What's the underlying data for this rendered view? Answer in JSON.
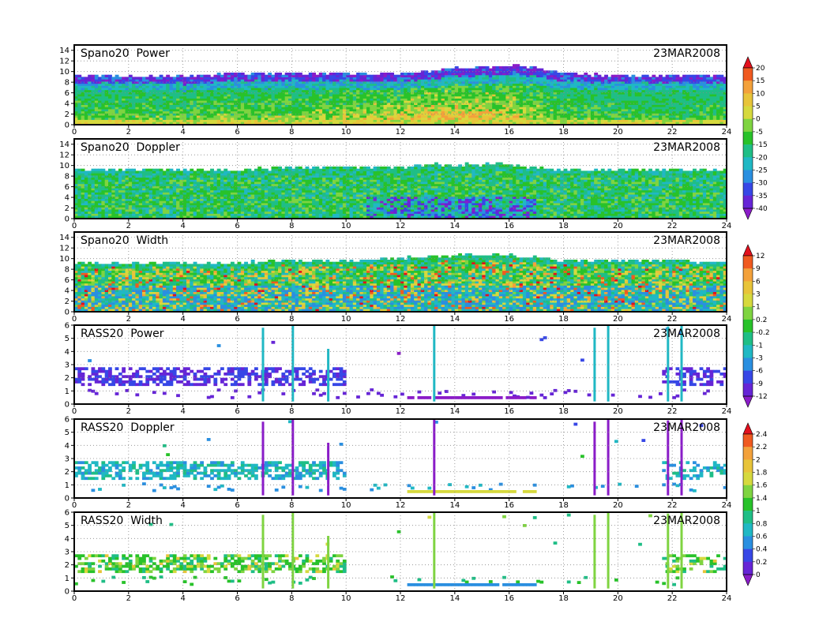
{
  "chart_data": [
    {
      "type": "heatmap",
      "title": "Spano20  Power",
      "date": "23MAR2008",
      "x_ticks": [
        "0",
        "2",
        "4",
        "6",
        "8",
        "10",
        "12",
        "14",
        "16",
        "18",
        "20",
        "22",
        "24"
      ],
      "y_ticks": [
        "0",
        "2",
        "4",
        "6",
        "8",
        "10",
        "12",
        "14"
      ],
      "xlim": [
        0,
        24
      ],
      "ylim": [
        0,
        15
      ],
      "grid": true,
      "colorbar": {
        "labels": [
          "20",
          "15",
          "10",
          "5",
          "0",
          "-5",
          "-15",
          "-20",
          "-25",
          "-30",
          "-35",
          "-40"
        ],
        "colors": [
          "#e3101d",
          "#f05a20",
          "#f3a13b",
          "#e8c43a",
          "#d6d93e",
          "#7fd441",
          "#28c22a",
          "#1fbe86",
          "#20b8c4",
          "#2a8fe0",
          "#3747e6",
          "#6625d6",
          "#8a1cc8"
        ]
      },
      "sample_values": {
        "hours": [
          0,
          2,
          4,
          6,
          8,
          10,
          12,
          13,
          14,
          15,
          16,
          17,
          18,
          20,
          22,
          24
        ],
        "top_height_km": [
          9,
          9,
          9,
          9.5,
          9.5,
          9.5,
          9.5,
          10,
          10.5,
          10.5,
          11,
          10.5,
          9.5,
          9,
          9,
          9
        ],
        "peak_value": [
          6,
          7,
          7,
          8,
          8,
          10,
          12,
          14,
          15,
          14,
          13,
          10,
          7,
          5,
          5,
          5
        ]
      }
    },
    {
      "type": "heatmap",
      "title": "Spano20  Doppler",
      "date": "23MAR2008",
      "x_ticks": [
        "0",
        "2",
        "4",
        "6",
        "8",
        "10",
        "12",
        "14",
        "16",
        "18",
        "20",
        "22",
        "24"
      ],
      "y_ticks": [
        "0",
        "2",
        "4",
        "6",
        "8",
        "10",
        "12",
        "14"
      ],
      "xlim": [
        0,
        24
      ],
      "ylim": [
        0,
        15
      ],
      "grid": true,
      "sample_values": {
        "hours": [
          0,
          2,
          4,
          6,
          8,
          10,
          12,
          13,
          14,
          15,
          16,
          17,
          18,
          20,
          22,
          24
        ],
        "top_height_km": [
          9,
          9,
          9,
          9,
          9.5,
          9.5,
          9.5,
          10,
          10,
          10,
          10,
          9.5,
          9,
          9,
          9,
          9
        ],
        "low_value_min": [
          -10,
          -10,
          -10,
          -12,
          -12,
          -15,
          -30,
          -40,
          -40,
          -40,
          -35,
          -20,
          -15,
          -12,
          -12,
          -12
        ]
      }
    },
    {
      "type": "heatmap",
      "title": "Spano20  Width",
      "date": "23MAR2008",
      "x_ticks": [
        "0",
        "2",
        "4",
        "6",
        "8",
        "10",
        "12",
        "14",
        "16",
        "18",
        "20",
        "22",
        "24"
      ],
      "y_ticks": [
        "0",
        "2",
        "4",
        "6",
        "8",
        "10",
        "12",
        "14"
      ],
      "xlim": [
        0,
        24
      ],
      "ylim": [
        0,
        15
      ],
      "grid": true,
      "colorbar": {
        "labels": [
          "12",
          "9",
          "6",
          "3",
          "1",
          "0.2",
          "-0.2",
          "-1",
          "-3",
          "-6",
          "-9",
          "-12"
        ],
        "colors": [
          "#e3101d",
          "#f05a20",
          "#f3a13b",
          "#e8c43a",
          "#d6d93e",
          "#7fd441",
          "#28c22a",
          "#1fbe86",
          "#20b8c4",
          "#2a8fe0",
          "#3747e6",
          "#6625d6",
          "#8a1cc8"
        ]
      },
      "sample_values": {
        "hours": [
          0,
          2,
          4,
          6,
          8,
          10,
          12,
          13,
          14,
          15,
          16,
          17,
          18,
          20,
          22,
          24
        ],
        "top_height_km": [
          9,
          9,
          9,
          9,
          9.5,
          9.5,
          10,
          10,
          10.5,
          10.5,
          10.5,
          10,
          9.5,
          9.5,
          9.5,
          9
        ]
      }
    },
    {
      "type": "heatmap",
      "title": "RASS20  Power",
      "date": "23MAR2008",
      "x_ticks": [
        "0",
        "2",
        "4",
        "6",
        "8",
        "10",
        "12",
        "14",
        "16",
        "18",
        "20",
        "22",
        "24"
      ],
      "y_ticks": [
        "0",
        "1",
        "2",
        "3",
        "4",
        "5",
        "6"
      ],
      "xlim": [
        0,
        24
      ],
      "ylim": [
        0,
        6
      ],
      "grid": true,
      "sample_values": {
        "vertical_streak_hours": [
          6.9,
          8.0,
          9.3,
          13.2,
          19.1,
          19.6,
          21.8,
          22.3
        ],
        "band_height_km": [
          2,
          2.2,
          1.8
        ]
      }
    },
    {
      "type": "heatmap",
      "title": "RASS20  Doppler",
      "date": "23MAR2008",
      "x_ticks": [
        "0",
        "2",
        "4",
        "6",
        "8",
        "10",
        "12",
        "14",
        "16",
        "18",
        "20",
        "22",
        "24"
      ],
      "y_ticks": [
        "0",
        "1",
        "2",
        "3",
        "4",
        "5",
        "6"
      ],
      "xlim": [
        0,
        24
      ],
      "ylim": [
        0,
        6
      ],
      "grid": true,
      "colorbar": {
        "labels": [
          "2.4",
          "2.2",
          "2",
          "1.8",
          "1.6",
          "1.4",
          "1",
          "0.8",
          "0.6",
          "0.4",
          "0.2",
          "0"
        ],
        "colors": [
          "#e3101d",
          "#f05a20",
          "#f3a13b",
          "#e8c43a",
          "#d6d93e",
          "#7fd441",
          "#28c22a",
          "#1fbe86",
          "#20b8c4",
          "#2a8fe0",
          "#3747e6",
          "#6625d6",
          "#8a1cc8"
        ]
      },
      "sample_values": {
        "vertical_streak_hours": [
          6.9,
          8.0,
          9.3,
          13.2,
          19.1,
          19.6,
          21.8,
          22.3
        ]
      }
    },
    {
      "type": "heatmap",
      "title": "RASS20  Width",
      "date": "23MAR2008",
      "x_ticks": [
        "0",
        "2",
        "4",
        "6",
        "8",
        "10",
        "12",
        "14",
        "16",
        "18",
        "20",
        "22",
        "24"
      ],
      "y_ticks": [
        "0",
        "1",
        "2",
        "3",
        "4",
        "5",
        "6"
      ],
      "xlim": [
        0,
        24
      ],
      "ylim": [
        0,
        6
      ],
      "grid": true,
      "sample_values": {
        "vertical_streak_hours": [
          6.9,
          8.0,
          9.3,
          13.2,
          19.1,
          19.6,
          21.8,
          22.3
        ]
      }
    }
  ]
}
